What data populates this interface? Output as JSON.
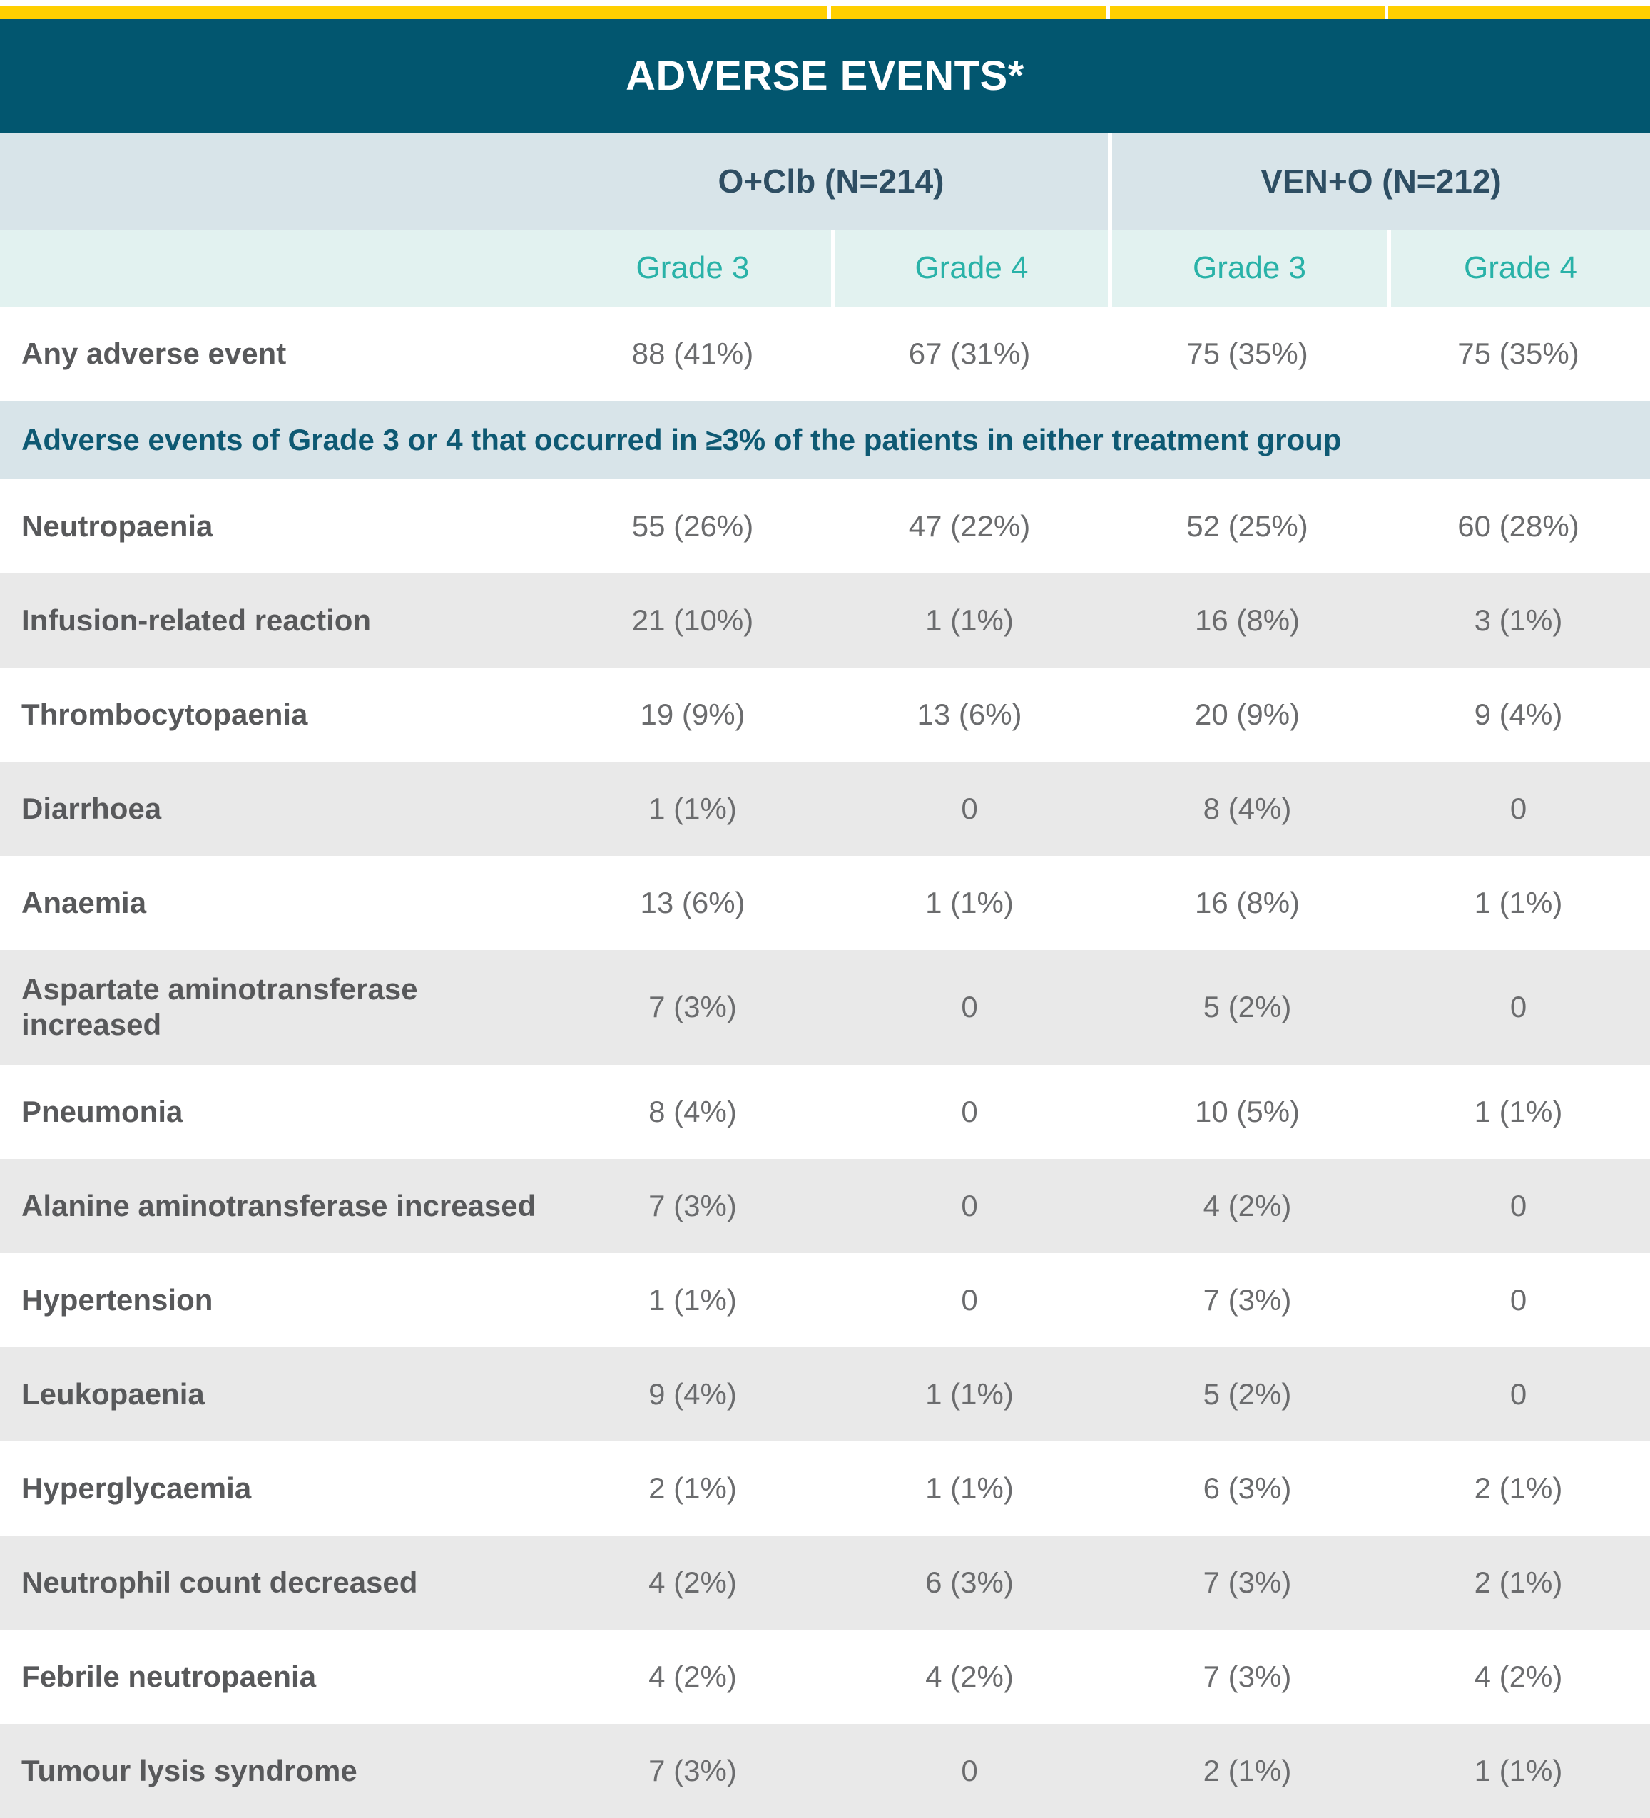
{
  "colors": {
    "accent_yellow": "#ffcf00",
    "title_bar_bg": "#02566f",
    "title_text": "#ffffff",
    "group_header_bg": "#d8e4e9",
    "group_header_text": "#2e4e63",
    "grade_header_bg": "#e2f2f0",
    "grade_header_text": "#29b2a8",
    "section_header_bg": "#d8e4e9",
    "section_header_text": "#0e5973",
    "row_label_text": "#58595b",
    "row_value_text": "#6b6c6e",
    "alt_row_bg": "#e9e9e9",
    "divider": "#ffffff"
  },
  "chart_data": {
    "type": "table",
    "title": "ADVERSE EVENTS*",
    "groups": [
      {
        "label": "O+Clb (N=214)",
        "n": 214
      },
      {
        "label": "VEN+O (N=212)",
        "n": 212
      }
    ],
    "subcolumns": [
      "Grade 3",
      "Grade 4",
      "Grade 3",
      "Grade 4"
    ],
    "summary_row": {
      "label": "Any adverse event",
      "values": [
        "88 (41%)",
        "67 (31%)",
        "75 (35%)",
        "75 (35%)"
      ]
    },
    "section_header": "Adverse events of Grade 3 or 4 that occurred in ≥3% of the patients in either treatment group",
    "rows": [
      {
        "label": "Neutropaenia",
        "values": [
          "55 (26%)",
          "47 (22%)",
          "52 (25%)",
          "60 (28%)"
        ]
      },
      {
        "label": "Infusion-related reaction",
        "values": [
          "21 (10%)",
          "1 (1%)",
          "16 (8%)",
          "3 (1%)"
        ]
      },
      {
        "label": "Thrombocytopaenia",
        "values": [
          "19 (9%)",
          "13 (6%)",
          "20 (9%)",
          "9 (4%)"
        ]
      },
      {
        "label": "Diarrhoea",
        "values": [
          "1 (1%)",
          "0",
          "8 (4%)",
          "0"
        ]
      },
      {
        "label": "Anaemia",
        "values": [
          "13 (6%)",
          "1 (1%)",
          "16 (8%)",
          "1 (1%)"
        ]
      },
      {
        "label": "Aspartate aminotransferase increased",
        "values": [
          "7 (3%)",
          "0",
          "5 (2%)",
          "0"
        ]
      },
      {
        "label": "Pneumonia",
        "values": [
          "8 (4%)",
          "0",
          "10 (5%)",
          "1 (1%)"
        ]
      },
      {
        "label": "Alanine aminotransferase increased",
        "values": [
          "7 (3%)",
          "0",
          "4 (2%)",
          "0"
        ]
      },
      {
        "label": "Hypertension",
        "values": [
          "1 (1%)",
          "0",
          "7 (3%)",
          "0"
        ]
      },
      {
        "label": "Leukopaenia",
        "values": [
          "9 (4%)",
          "1 (1%)",
          "5 (2%)",
          "0"
        ]
      },
      {
        "label": "Hyperglycaemia",
        "values": [
          "2 (1%)",
          "1 (1%)",
          "6 (3%)",
          "2 (1%)"
        ]
      },
      {
        "label": "Neutrophil count decreased",
        "values": [
          "4 (2%)",
          "6 (3%)",
          "7 (3%)",
          "2 (1%)"
        ]
      },
      {
        "label": "Febrile neutropaenia",
        "values": [
          "4 (2%)",
          "4 (2%)",
          "7 (3%)",
          "4 (2%)"
        ]
      },
      {
        "label": "Tumour lysis syndrome",
        "values": [
          "7 (3%)",
          "0",
          "2 (1%)",
          "1 (1%)"
        ]
      }
    ]
  }
}
